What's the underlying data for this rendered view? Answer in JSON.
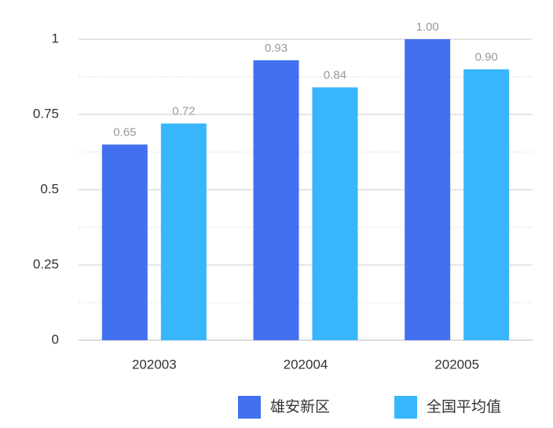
{
  "chart_data": {
    "type": "bar",
    "categories": [
      "202003",
      "202004",
      "202005"
    ],
    "series": [
      {
        "name": "雄安新区",
        "color": "#4270ef",
        "values": [
          0.65,
          0.93,
          1.0
        ],
        "value_labels": [
          "0.65",
          "0.93",
          "1.00"
        ]
      },
      {
        "name": "全国平均值",
        "color": "#38b6fb",
        "values": [
          0.72,
          0.84,
          0.9
        ],
        "value_labels": [
          "0.72",
          "0.84",
          "0.90"
        ]
      }
    ],
    "ylim": [
      0,
      1
    ],
    "yticks": [
      0,
      0.25,
      0.5,
      0.75,
      1
    ],
    "yminorticks": [
      0.125,
      0.375,
      0.625,
      0.875
    ],
    "grid": true,
    "legend": "bottom"
  }
}
